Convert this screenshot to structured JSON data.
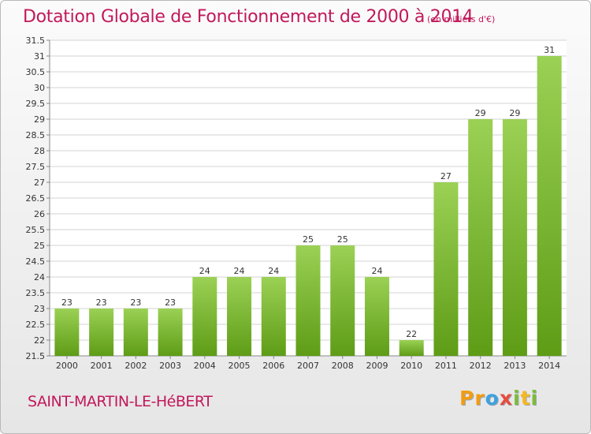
{
  "header": {
    "title": "Dotation Globale de Fonctionnement de 2000 à 2014",
    "unit": "(en milliers d'€)"
  },
  "footer": {
    "commune": "SAINT-MARTIN-LE-HéBERT",
    "logo_letters": [
      "P",
      "r",
      "o",
      "x",
      "i",
      "t",
      "i"
    ],
    "logo_colors": [
      "#f39c12",
      "#f39c12",
      "#3ea1e0",
      "#e84c3d",
      "#7dbb3a",
      "#f5b81f",
      "#7dbb3a"
    ]
  },
  "colors": {
    "bar_light": "#9bd155",
    "bar_dark": "#5e9c16",
    "title": "#c2185b",
    "grid": "#d3d3d3"
  },
  "chart_data": {
    "type": "bar",
    "title": "Dotation Globale de Fonctionnement de 2000 à 2014",
    "categories": [
      "2000",
      "2001",
      "2002",
      "2003",
      "2004",
      "2005",
      "2006",
      "2007",
      "2008",
      "2009",
      "2010",
      "2011",
      "2012",
      "2013",
      "2014"
    ],
    "values": [
      23,
      23,
      23,
      23,
      24,
      24,
      24,
      25,
      25,
      24,
      22,
      27,
      29,
      29,
      31
    ],
    "ylim": [
      21.5,
      31.5
    ],
    "ytick_step": 0.5,
    "grid": true,
    "data_labels": true,
    "legend": "none"
  }
}
